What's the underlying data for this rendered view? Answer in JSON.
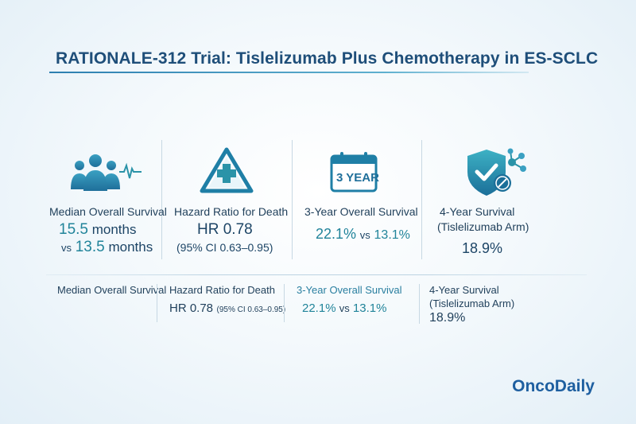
{
  "title": "RATIONALE-312 Trial: Tislelizumab Plus Chemotherapy in ES-SCLC",
  "cards": [
    {
      "icon": "people-heartbeat-icon",
      "label": "Median Overall Survival",
      "value_line1_number": "15.5",
      "value_line1_unit": "months",
      "value_line2_prefix": "vs",
      "value_line2_number": "13.5",
      "value_line2_unit": "months"
    },
    {
      "icon": "warning-cross-icon",
      "label": "Hazard Ratio for Death",
      "value": "HR 0.78",
      "sub": "(95% CI 0.63–0.95)"
    },
    {
      "icon": "calendar-3-year-icon",
      "icon_text": "3 YEAR",
      "label": "3-Year Overall Survival",
      "value_a": "22.1%",
      "vs": "vs",
      "value_b": "13.1%"
    },
    {
      "icon": "shield-check-molecule-icon",
      "label_line1": "4-Year Survival",
      "label_line2": "(Tislelizumab Arm)",
      "value": "18.9%"
    }
  ],
  "summary_row": {
    "col1": "Median Overall Survival",
    "col2_label": "Hazard Ratio for Death",
    "col2_value": "HR 0.78",
    "col2_ci": "(95% CI 0.63–0.95)",
    "col3_label": "3-Year Overall Survival",
    "col3_a": "22.1%",
    "col3_vs": "vs",
    "col3_b": "13.1%",
    "col4_label_line1": "4-Year Survival",
    "col4_label_line2": "(Tislelizumab Arm)",
    "col4_value": "18.9%"
  },
  "logo": "OncoDaily",
  "colors": {
    "accent": "#2a93a8",
    "title": "#1e4e79",
    "logo": "#1e5fa0"
  }
}
